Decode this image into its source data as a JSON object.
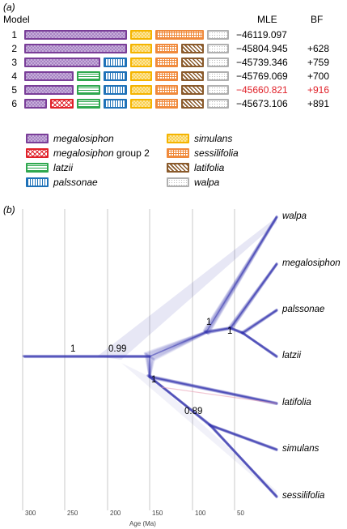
{
  "panel_a": {
    "label": "(a)",
    "headers": {
      "model": "Model",
      "mle": "MLE",
      "bf": "BF"
    },
    "rows": [
      {
        "num": "1",
        "mle": "−46119.097",
        "bf": "",
        "highlight": false,
        "segments": [
          "megalosiphon",
          "simulans",
          "sessilifolia",
          "walpa"
        ]
      },
      {
        "num": "2",
        "mle": "−45804.945",
        "bf": "+628",
        "highlight": false,
        "segments": [
          "megalosiphon",
          "simulans",
          "sessilifolia",
          "latifolia",
          "walpa"
        ]
      },
      {
        "num": "3",
        "mle": "−45739.346",
        "bf": "+759",
        "highlight": false,
        "segments": [
          "megalosiphon",
          "palssonae",
          "simulans",
          "sessilifolia",
          "latifolia",
          "walpa"
        ]
      },
      {
        "num": "4",
        "mle": "−45769.069",
        "bf": "+700",
        "highlight": false,
        "segments": [
          "megalosiphon",
          "latzii",
          "palssonae",
          "simulans",
          "sessilifolia",
          "latifolia",
          "walpa"
        ]
      },
      {
        "num": "5",
        "mle": "−45660.821",
        "bf": "+916",
        "highlight": true,
        "segments": [
          "megalosiphon",
          "latzii",
          "palssonae",
          "simulans",
          "sessilifolia",
          "latifolia",
          "walpa"
        ]
      },
      {
        "num": "6",
        "mle": "−45673.106",
        "bf": "+891",
        "highlight": false,
        "segments": [
          "megalosiphon",
          "megalosiphon2",
          "latzii",
          "palssonae",
          "simulans",
          "sessilifolia",
          "latifolia",
          "walpa"
        ]
      }
    ],
    "highlight_color": "#e0222a",
    "legend": [
      {
        "key": "megalosiphon",
        "name": "megalosiphon",
        "suffix": ""
      },
      {
        "key": "megalosiphon2",
        "name": "megalosiphon",
        "suffix": " group 2"
      },
      {
        "key": "latzii",
        "name": "latzii",
        "suffix": ""
      },
      {
        "key": "palssonae",
        "name": "palssonae",
        "suffix": ""
      },
      {
        "key": "simulans",
        "name": "simulans",
        "suffix": ""
      },
      {
        "key": "sessilifolia",
        "name": "sessilifolia",
        "suffix": ""
      },
      {
        "key": "latifolia",
        "name": "latifolia",
        "suffix": ""
      },
      {
        "key": "walpa",
        "name": "walpa",
        "suffix": ""
      }
    ],
    "colors": {
      "megalosiphon": "#7a3e98",
      "megalosiphon2": "#e0222a",
      "latzii": "#2fa84f",
      "palssonae": "#1f72b8",
      "simulans": "#f4b400",
      "sessilifolia": "#f08a3c",
      "latifolia": "#8a5a2b",
      "walpa": "#b0b0b0"
    }
  },
  "panel_b": {
    "label": "(b)",
    "axis_title": "Age (Ma)",
    "ticks": [
      "300",
      "250",
      "200",
      "150",
      "100",
      "50"
    ],
    "tip_labels": [
      "walpa",
      "megalosiphon",
      "palssonae",
      "latzii",
      "latifolia",
      "simulans",
      "sessilifolia"
    ],
    "node_supports": [
      "1",
      "0.99",
      "1",
      "1",
      "1",
      "0.89"
    ],
    "tree_color": "#3a3ab0"
  }
}
